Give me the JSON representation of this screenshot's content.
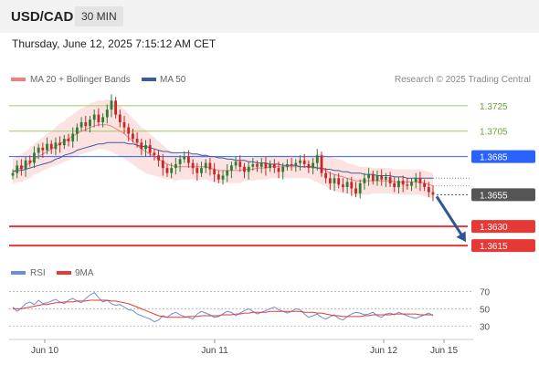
{
  "header": {
    "symbol": "USD/CAD",
    "timeframe": "30 MIN"
  },
  "datetime": "Thursday, June 12, 2025 7:15:12 AM CET",
  "legend": {
    "bollinger": "MA 20 + Bollinger Bands",
    "ma50": "MA 50",
    "copyright": "Research © 2025 Trading Central",
    "rsi": "RSI",
    "rsi_ma": "9MA"
  },
  "colors": {
    "bull": "#2e7d32",
    "bear": "#c62828",
    "band_fill": "#fde2e2",
    "ma20": "#f08080",
    "ma50": "#3a5ba0",
    "resistance": "#9ccc65",
    "pivot": "#2962ff",
    "support": "#e53935",
    "last": "#333333",
    "arrow": "#2f5597",
    "rsi": "#6b8ed6",
    "rsi_ma": "#e53935"
  },
  "chart_data": [
    {
      "type": "candlestick",
      "title": "USD/CAD 30 MIN",
      "ylim": [
        1.3605,
        1.374
      ],
      "x_ticks": [
        "Jun 10",
        "Jun 11",
        "Jun 12",
        "Jun 15"
      ],
      "levels": [
        {
          "label": "1.3725",
          "value": 1.3725,
          "kind": "resistance"
        },
        {
          "label": "1.3705",
          "value": 1.3705,
          "kind": "resistance"
        },
        {
          "label": "1.3685",
          "value": 1.3685,
          "kind": "pivot"
        },
        {
          "label": "1.3655",
          "value": 1.3655,
          "kind": "last"
        },
        {
          "label": "1.3630",
          "value": 1.363,
          "kind": "support"
        },
        {
          "label": "1.3615",
          "value": 1.3615,
          "kind": "support"
        }
      ],
      "closes": [
        1.3672,
        1.3678,
        1.3675,
        1.3682,
        1.368,
        1.3688,
        1.3692,
        1.369,
        1.3695,
        1.3691,
        1.3696,
        1.3694,
        1.3699,
        1.3697,
        1.3703,
        1.3708,
        1.3712,
        1.3709,
        1.3714,
        1.3718,
        1.3712,
        1.3716,
        1.3722,
        1.3729,
        1.3718,
        1.3712,
        1.3708,
        1.3703,
        1.3699,
        1.3696,
        1.3691,
        1.3694,
        1.3688,
        1.3686,
        1.3682,
        1.3676,
        1.3672,
        1.3676,
        1.3679,
        1.3683,
        1.3685,
        1.368,
        1.3676,
        1.3672,
        1.3676,
        1.368,
        1.3675,
        1.3671,
        1.3667,
        1.367,
        1.3674,
        1.3678,
        1.3681,
        1.3677,
        1.3673,
        1.3677,
        1.3679,
        1.3677,
        1.368,
        1.3676,
        1.3679,
        1.3676,
        1.3673,
        1.3677,
        1.3679,
        1.3678,
        1.368,
        1.3682,
        1.3679,
        1.3676,
        1.368,
        1.3686,
        1.3672,
        1.3668,
        1.3664,
        1.3668,
        1.3663,
        1.3661,
        1.3665,
        1.366,
        1.3656,
        1.3664,
        1.3668,
        1.3671,
        1.3666,
        1.367,
        1.3667,
        1.3669,
        1.3664,
        1.3661,
        1.3666,
        1.3663,
        1.3662,
        1.3665,
        1.3668,
        1.3664,
        1.3661,
        1.3657,
        1.3655
      ],
      "ma20": [
        1.3673,
        1.3675,
        1.3676,
        1.3678,
        1.368,
        1.3683,
        1.3685,
        1.3687,
        1.3689,
        1.3691,
        1.3693,
        1.3695,
        1.3697,
        1.3699,
        1.3701,
        1.3703,
        1.3705,
        1.3706,
        1.3708,
        1.3709,
        1.371,
        1.371,
        1.371,
        1.3709,
        1.3707,
        1.3705,
        1.3703,
        1.37,
        1.3697,
        1.3694,
        1.3691,
        1.3689,
        1.3687,
        1.3685,
        1.3683,
        1.3681,
        1.3679,
        1.3678,
        1.3677,
        1.3677,
        1.3677,
        1.3677,
        1.3677,
        1.3677,
        1.3677,
        1.3677,
        1.3676,
        1.3675,
        1.3674,
        1.3674,
        1.3674,
        1.3674,
        1.3674,
        1.3674,
        1.3675,
        1.3675,
        1.3675,
        1.3676,
        1.3676,
        1.3676,
        1.3677,
        1.3677,
        1.3677,
        1.3677,
        1.3677,
        1.3677,
        1.3677,
        1.3677,
        1.3677,
        1.3677,
        1.3676,
        1.3676,
        1.3675,
        1.3674,
        1.3672,
        1.3671,
        1.367,
        1.3669,
        1.3668,
        1.3667,
        1.3666,
        1.3666,
        1.3666,
        1.3666,
        1.3666,
        1.3666,
        1.3666,
        1.3666,
        1.3666,
        1.3665,
        1.3665,
        1.3665,
        1.3665,
        1.3665,
        1.3665,
        1.3665,
        1.3664,
        1.3663,
        1.3662
      ],
      "bb_width": [
        0.001,
        0.001,
        0.0011,
        0.0011,
        0.0012,
        0.0012,
        0.0013,
        0.0013,
        0.0014,
        0.0014,
        0.0015,
        0.0016,
        0.0016,
        0.0017,
        0.0017,
        0.0018,
        0.0018,
        0.0018,
        0.0019,
        0.0019,
        0.0019,
        0.0019,
        0.002,
        0.002,
        0.002,
        0.002,
        0.0019,
        0.0019,
        0.0018,
        0.0018,
        0.0017,
        0.0017,
        0.0016,
        0.0015,
        0.0014,
        0.0013,
        0.0012,
        0.0011,
        0.0011,
        0.001,
        0.001,
        0.001,
        0.001,
        0.001,
        0.001,
        0.001,
        0.001,
        0.001,
        0.001,
        0.001,
        0.001,
        0.001,
        0.001,
        0.001,
        0.0009,
        0.0009,
        0.0009,
        0.0009,
        0.0009,
        0.0009,
        0.0009,
        0.0009,
        0.0009,
        0.0009,
        0.0009,
        0.0009,
        0.0009,
        0.0009,
        0.0009,
        0.0009,
        0.001,
        0.0011,
        0.0012,
        0.0012,
        0.0013,
        0.0013,
        0.0013,
        0.0013,
        0.0012,
        0.0012,
        0.0012,
        0.0011,
        0.0011,
        0.0011,
        0.001,
        0.001,
        0.001,
        0.001,
        0.001,
        0.001,
        0.001,
        0.001,
        0.001,
        0.001,
        0.001,
        0.001,
        0.001,
        0.001,
        0.001
      ],
      "ma50": [
        1.3673,
        1.3674,
        1.3674,
        1.3675,
        1.3676,
        1.3677,
        1.3678,
        1.3679,
        1.368,
        1.3681,
        1.3683,
        1.3684,
        1.3686,
        1.3687,
        1.3688,
        1.369,
        1.3691,
        1.3692,
        1.3693,
        1.3694,
        1.3695,
        1.3695,
        1.3696,
        1.3696,
        1.3696,
        1.3696,
        1.3696,
        1.3695,
        1.3695,
        1.3694,
        1.3693,
        1.3693,
        1.3692,
        1.3691,
        1.369,
        1.3689,
        1.3689,
        1.3688,
        1.3688,
        1.3688,
        1.3688,
        1.3688,
        1.3687,
        1.3687,
        1.3686,
        1.3686,
        1.3685,
        1.3685,
        1.3684,
        1.3684,
        1.3683,
        1.3683,
        1.3682,
        1.3682,
        1.3682,
        1.3681,
        1.3681,
        1.368,
        1.368,
        1.368,
        1.3679,
        1.3679,
        1.3679,
        1.3678,
        1.3678,
        1.3678,
        1.3678,
        1.3677,
        1.3677,
        1.3677,
        1.3677,
        1.3676,
        1.3676,
        1.3675,
        1.3675,
        1.3674,
        1.3674,
        1.3673,
        1.3673,
        1.3672,
        1.3672,
        1.3672,
        1.3671,
        1.3671,
        1.3671,
        1.367,
        1.367,
        1.367,
        1.367,
        1.3669,
        1.3669,
        1.3669,
        1.3668,
        1.3668,
        1.3668,
        1.3668,
        1.3668,
        1.3668,
        1.3668
      ],
      "projection": {
        "from": 1.3655,
        "to": 1.3615
      }
    },
    {
      "type": "line",
      "title": "RSI",
      "ylim": [
        25,
        78
      ],
      "y_ticks": [
        70,
        50,
        30
      ],
      "series": [
        {
          "name": "RSI",
          "values": [
            52,
            47,
            51,
            56,
            58,
            55,
            60,
            56,
            57,
            59,
            61,
            58,
            56,
            60,
            62,
            59,
            57,
            62,
            66,
            69,
            63,
            58,
            60,
            56,
            54,
            55,
            52,
            49,
            48,
            44,
            42,
            40,
            38,
            35,
            37,
            42,
            40,
            44,
            46,
            43,
            41,
            40,
            38,
            44,
            47,
            45,
            43,
            40,
            41,
            44,
            47,
            46,
            42,
            45,
            48,
            50,
            47,
            44,
            46,
            48,
            50,
            52,
            49,
            47,
            45,
            47,
            50,
            49,
            44,
            40,
            42,
            44,
            40,
            38,
            41,
            43,
            39,
            37,
            41,
            44,
            46,
            45,
            43,
            44,
            46,
            42,
            40,
            44,
            45,
            43,
            46,
            44,
            42,
            40,
            39,
            41,
            43,
            45,
            42
          ]
        },
        {
          "name": "9MA",
          "values": [
            50,
            50,
            50,
            51,
            52,
            53,
            54,
            55,
            55,
            56,
            57,
            57,
            58,
            58,
            58,
            59,
            59,
            59,
            60,
            60,
            60,
            60,
            60,
            59,
            59,
            58,
            57,
            56,
            54,
            52,
            50,
            48,
            46,
            44,
            42,
            41,
            40,
            40,
            40,
            40,
            40,
            41,
            41,
            41,
            42,
            42,
            42,
            42,
            42,
            43,
            43,
            43,
            44,
            44,
            45,
            45,
            46,
            46,
            46,
            46,
            47,
            47,
            47,
            47,
            47,
            47,
            47,
            47,
            46,
            46,
            46,
            45,
            45,
            44,
            43,
            42,
            42,
            41,
            41,
            41,
            41,
            41,
            42,
            42,
            43,
            43,
            43,
            43,
            43,
            44,
            44,
            44,
            44,
            44,
            44,
            43,
            43,
            43,
            43
          ]
        }
      ]
    }
  ]
}
